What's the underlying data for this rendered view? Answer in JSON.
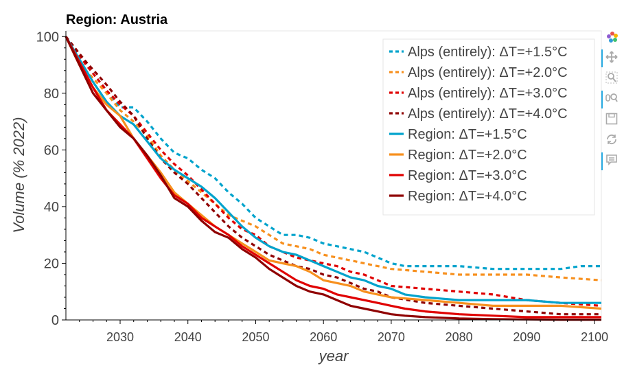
{
  "chart_data": {
    "type": "line",
    "title": "Region: Austria",
    "xlabel": "year",
    "ylabel": "Volume (% 2022)",
    "xlim": [
      2022,
      2101
    ],
    "ylim": [
      0,
      102
    ],
    "xticks": [
      2030,
      2040,
      2050,
      2060,
      2070,
      2080,
      2090,
      2100
    ],
    "yticks": [
      0,
      20,
      40,
      60,
      80,
      100
    ],
    "grid": false,
    "legend_position": "top-right",
    "series": [
      {
        "name": "Alps (entirely): ΔT=+1.5°C",
        "color": "#00a3cc",
        "dash": "dashed",
        "x": [
          2022,
          2025,
          2028,
          2030,
          2032,
          2034,
          2036,
          2038,
          2040,
          2042,
          2044,
          2046,
          2048,
          2050,
          2052,
          2054,
          2056,
          2058,
          2060,
          2062,
          2064,
          2066,
          2068,
          2070,
          2072,
          2075,
          2080,
          2085,
          2090,
          2095,
          2098,
          2101
        ],
        "y": [
          100,
          90,
          81,
          75,
          75,
          70,
          64,
          59,
          57,
          53,
          50,
          45,
          41,
          36,
          33,
          30,
          30,
          29,
          27,
          26,
          25,
          24,
          22,
          20,
          19,
          19,
          19,
          18,
          18,
          18,
          19,
          19
        ]
      },
      {
        "name": "Alps (entirely): ΔT=+2.0°C",
        "color": "#f7901e",
        "dash": "dashed",
        "x": [
          2022,
          2025,
          2028,
          2030,
          2032,
          2034,
          2036,
          2038,
          2040,
          2042,
          2044,
          2046,
          2048,
          2050,
          2052,
          2054,
          2056,
          2058,
          2060,
          2062,
          2064,
          2066,
          2068,
          2070,
          2075,
          2080,
          2085,
          2090,
          2095,
          2101
        ],
        "y": [
          100,
          88,
          80,
          74,
          70,
          65,
          58,
          53,
          49,
          45,
          41,
          37,
          35,
          33,
          30,
          27,
          26,
          25,
          23,
          22,
          21,
          20,
          19,
          18,
          17,
          16,
          16,
          16,
          15,
          14
        ]
      },
      {
        "name": "Alps (entirely): ΔT=+3.0°C",
        "color": "#e00000",
        "dash": "dashed",
        "x": [
          2022,
          2025,
          2028,
          2030,
          2032,
          2034,
          2036,
          2038,
          2040,
          2042,
          2044,
          2046,
          2048,
          2050,
          2052,
          2054,
          2056,
          2058,
          2060,
          2062,
          2064,
          2066,
          2068,
          2070,
          2075,
          2080,
          2085,
          2090,
          2095,
          2101
        ],
        "y": [
          100,
          90,
          81,
          76,
          72,
          66,
          60,
          55,
          51,
          46,
          41,
          36,
          32,
          30,
          26,
          24,
          22,
          21,
          20,
          19,
          17,
          16,
          14,
          12,
          11,
          10,
          9,
          7,
          6,
          5
        ]
      },
      {
        "name": "Alps (entirely): ΔT=+4.0°C",
        "color": "#8f0000",
        "dash": "dashed",
        "x": [
          2022,
          2025,
          2028,
          2030,
          2032,
          2034,
          2036,
          2038,
          2040,
          2042,
          2044,
          2046,
          2048,
          2050,
          2052,
          2054,
          2056,
          2058,
          2060,
          2062,
          2064,
          2066,
          2068,
          2070,
          2075,
          2080,
          2085,
          2090,
          2095,
          2101
        ],
        "y": [
          100,
          91,
          83,
          77,
          72,
          64,
          57,
          52,
          48,
          43,
          38,
          33,
          29,
          26,
          23,
          21,
          19,
          18,
          16,
          15,
          13,
          11,
          10,
          8,
          6,
          5,
          4,
          3,
          2,
          2
        ]
      },
      {
        "name": "Region: ΔT=+1.5°C",
        "color": "#00a3cc",
        "dash": "solid",
        "x": [
          2022,
          2024,
          2026,
          2028,
          2030,
          2032,
          2034,
          2036,
          2038,
          2040,
          2042,
          2044,
          2046,
          2048,
          2050,
          2052,
          2054,
          2056,
          2058,
          2060,
          2062,
          2064,
          2066,
          2068,
          2070,
          2072,
          2075,
          2080,
          2085,
          2090,
          2095,
          2101
        ],
        "y": [
          100,
          92,
          84,
          77,
          72,
          69,
          63,
          57,
          53,
          50,
          47,
          43,
          38,
          33,
          29,
          26,
          24,
          23,
          21,
          19,
          17,
          15,
          14,
          12,
          11,
          9,
          8,
          7,
          7,
          7,
          6,
          6
        ]
      },
      {
        "name": "Region: ΔT=+2.0°C",
        "color": "#f7901e",
        "dash": "solid",
        "x": [
          2022,
          2024,
          2026,
          2028,
          2030,
          2032,
          2034,
          2036,
          2038,
          2040,
          2042,
          2044,
          2046,
          2048,
          2050,
          2052,
          2054,
          2056,
          2058,
          2060,
          2062,
          2064,
          2066,
          2068,
          2070,
          2075,
          2080,
          2085,
          2090,
          2095,
          2101
        ],
        "y": [
          100,
          90,
          82,
          76,
          72,
          64,
          58,
          52,
          45,
          41,
          37,
          33,
          30,
          27,
          24,
          21,
          20,
          19,
          17,
          14,
          13,
          12,
          10,
          9,
          8,
          7,
          6,
          5,
          5,
          5,
          4
        ]
      },
      {
        "name": "Region: ΔT=+3.0°C",
        "color": "#e00000",
        "dash": "solid",
        "x": [
          2022,
          2024,
          2026,
          2028,
          2030,
          2032,
          2034,
          2036,
          2038,
          2040,
          2042,
          2044,
          2046,
          2048,
          2050,
          2052,
          2054,
          2056,
          2058,
          2060,
          2062,
          2064,
          2066,
          2068,
          2070,
          2072,
          2075,
          2080,
          2085,
          2090,
          2095,
          2101
        ],
        "y": [
          100,
          91,
          82,
          74,
          69,
          64,
          57,
          50,
          44,
          41,
          36,
          33,
          30,
          26,
          23,
          20,
          17,
          14,
          12,
          11,
          9,
          8,
          7,
          6,
          5,
          4,
          3,
          2,
          1.5,
          1,
          1,
          1
        ]
      },
      {
        "name": "Region: ΔT=+4.0°C",
        "color": "#8f0000",
        "dash": "solid",
        "x": [
          2022,
          2024,
          2026,
          2028,
          2030,
          2032,
          2034,
          2036,
          2038,
          2040,
          2042,
          2044,
          2046,
          2048,
          2050,
          2052,
          2054,
          2056,
          2058,
          2060,
          2062,
          2064,
          2066,
          2068,
          2070,
          2072,
          2075,
          2080,
          2085,
          2090,
          2095,
          2101
        ],
        "y": [
          100,
          90,
          80,
          74,
          68,
          64,
          58,
          51,
          43,
          40,
          35,
          31,
          29,
          25,
          22,
          18,
          15,
          12,
          10,
          9,
          7,
          5,
          4,
          3,
          2,
          1.5,
          1,
          0.5,
          0.3,
          0.2,
          0.1,
          0.1
        ]
      }
    ]
  },
  "toolbar": {
    "tools": [
      "bokeh-logo-icon",
      "pan-icon",
      "box-zoom-icon",
      "wheel-zoom-icon",
      "save-icon",
      "reset-icon",
      "hover-icon"
    ]
  }
}
